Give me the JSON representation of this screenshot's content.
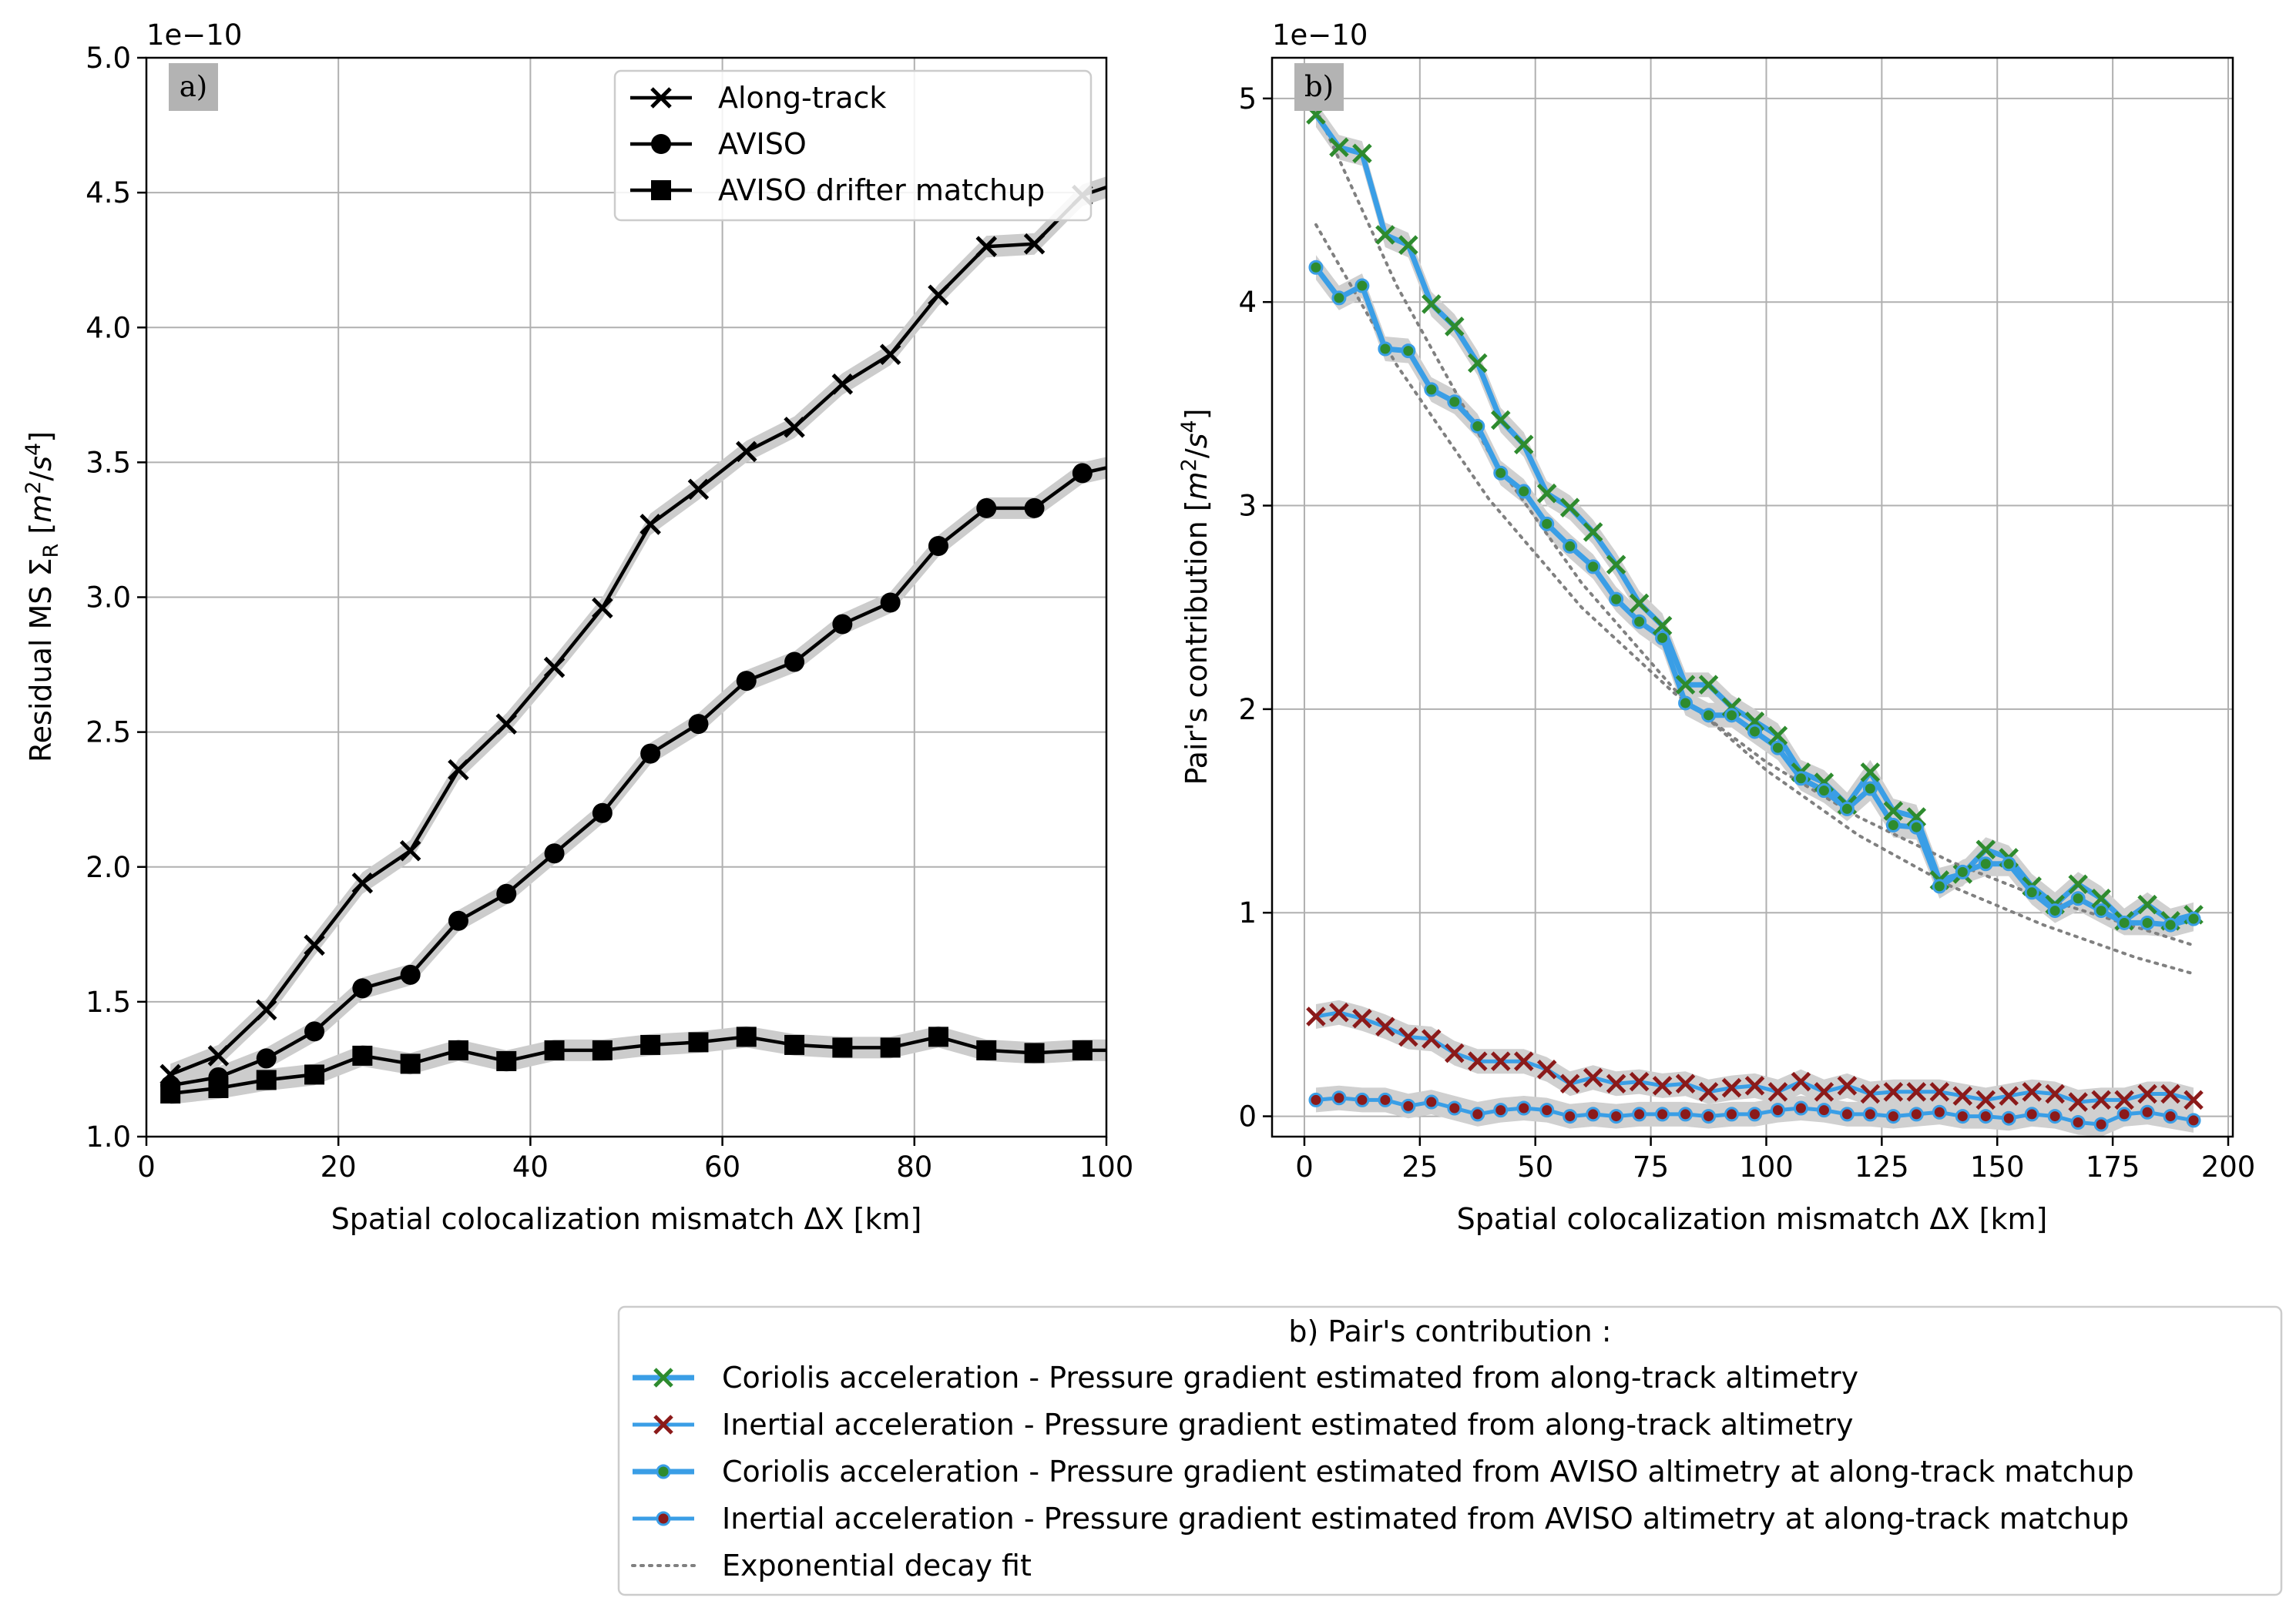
{
  "chart_data": [
    {
      "type": "line",
      "panel_label": "a)",
      "xlabel": "Spatial colocalization mismatch ΔX [km]",
      "ylabel": "Residual MS Σ_R [m²/s⁴]",
      "offset_text": "1e−10",
      "xlim": [
        0,
        100
      ],
      "ylim": [
        1.0,
        5.0
      ],
      "xticks": [
        "0",
        "20",
        "40",
        "60",
        "80",
        "100"
      ],
      "yticks": [
        "1.0",
        "1.5",
        "2.0",
        "2.5",
        "3.0",
        "3.5",
        "4.0",
        "4.5",
        "5.0"
      ],
      "grid": true,
      "legend_position": "top-right",
      "x": [
        2.5,
        7.5,
        12.5,
        17.5,
        22.5,
        27.5,
        32.5,
        37.5,
        42.5,
        47.5,
        52.5,
        57.5,
        62.5,
        67.5,
        72.5,
        77.5,
        82.5,
        87.5,
        92.5,
        97.5,
        102.5
      ],
      "series": [
        {
          "name": "Along-track",
          "marker": "x",
          "color": "#000000",
          "values": [
            1.23,
            1.3,
            1.47,
            1.71,
            1.94,
            2.06,
            2.36,
            2.53,
            2.74,
            2.96,
            3.27,
            3.4,
            3.54,
            3.63,
            3.79,
            3.9,
            4.12,
            4.3,
            4.31,
            4.49,
            4.55
          ]
        },
        {
          "name": "AVISO",
          "marker": "circle",
          "color": "#000000",
          "values": [
            1.19,
            1.22,
            1.29,
            1.39,
            1.55,
            1.6,
            1.8,
            1.9,
            2.05,
            2.2,
            2.42,
            2.53,
            2.69,
            2.76,
            2.9,
            2.98,
            3.19,
            3.33,
            3.33,
            3.46,
            3.5
          ]
        },
        {
          "name": "AVISO drifter matchup",
          "marker": "square",
          "color": "#000000",
          "values": [
            1.16,
            1.18,
            1.21,
            1.23,
            1.3,
            1.27,
            1.32,
            1.28,
            1.32,
            1.32,
            1.34,
            1.35,
            1.37,
            1.34,
            1.33,
            1.33,
            1.37,
            1.32,
            1.31,
            1.32,
            1.32
          ]
        }
      ]
    },
    {
      "type": "line",
      "panel_label": "b)",
      "xlabel": "Spatial colocalization mismatch ΔX [km]",
      "ylabel": "Pair's contribution [m²/s⁴]",
      "offset_text": "1e−10",
      "xlim": [
        -7,
        201
      ],
      "ylim": [
        -0.1,
        5.2
      ],
      "xticks": [
        "0",
        "25",
        "50",
        "75",
        "100",
        "125",
        "150",
        "175",
        "200"
      ],
      "yticks": [
        "0",
        "1",
        "2",
        "3",
        "4",
        "5"
      ],
      "grid": true,
      "legend_position": "bottom (outside)",
      "legend_title": "b) Pair's contribution :",
      "x": [
        2.5,
        7.5,
        12.5,
        17.5,
        22.5,
        27.5,
        32.5,
        37.5,
        42.5,
        47.5,
        52.5,
        57.5,
        62.5,
        67.5,
        72.5,
        77.5,
        82.5,
        87.5,
        92.5,
        97.5,
        102.5,
        107.5,
        112.5,
        117.5,
        122.5,
        127.5,
        132.5,
        137.5,
        142.5,
        147.5,
        152.5,
        157.5,
        162.5,
        167.5,
        172.5,
        177.5,
        182.5,
        187.5,
        192.5
      ],
      "series": [
        {
          "name": "Coriolis acceleration - Pressure gradient estimated from along-track altimetry",
          "marker": "x",
          "color": "#2e8b2e",
          "line_color": "#3a9ee6",
          "values": [
            4.92,
            4.76,
            4.73,
            4.33,
            4.28,
            3.99,
            3.88,
            3.7,
            3.42,
            3.3,
            3.06,
            2.99,
            2.87,
            2.71,
            2.52,
            2.41,
            2.12,
            2.12,
            2.01,
            1.94,
            1.87,
            1.69,
            1.64,
            1.53,
            1.69,
            1.5,
            1.47,
            1.16,
            1.19,
            1.31,
            1.27,
            1.13,
            1.04,
            1.14,
            1.07,
            0.96,
            1.04,
            0.96,
            0.99
          ]
        },
        {
          "name": "Inertial acceleration - Pressure gradient estimated from along-track altimetry",
          "marker": "x",
          "color": "#8b1a1a",
          "line_color": "#3a9ee6",
          "values": [
            0.49,
            0.51,
            0.48,
            0.44,
            0.39,
            0.38,
            0.31,
            0.27,
            0.27,
            0.27,
            0.23,
            0.16,
            0.19,
            0.16,
            0.17,
            0.15,
            0.16,
            0.12,
            0.14,
            0.15,
            0.12,
            0.17,
            0.12,
            0.15,
            0.11,
            0.12,
            0.12,
            0.12,
            0.1,
            0.08,
            0.1,
            0.12,
            0.11,
            0.07,
            0.08,
            0.08,
            0.11,
            0.11,
            0.08
          ]
        },
        {
          "name": "Coriolis acceleration - Pressure gradient estimated from AVISO altimetry at along-track matchup",
          "marker": "dot",
          "color": "#2e8b2e",
          "line_color": "#3a9ee6",
          "values": [
            4.17,
            4.02,
            4.08,
            3.77,
            3.76,
            3.57,
            3.51,
            3.39,
            3.16,
            3.07,
            2.91,
            2.8,
            2.7,
            2.54,
            2.43,
            2.35,
            2.03,
            1.97,
            1.97,
            1.89,
            1.81,
            1.66,
            1.6,
            1.51,
            1.61,
            1.43,
            1.42,
            1.13,
            1.2,
            1.24,
            1.24,
            1.1,
            1.01,
            1.07,
            1.01,
            0.95,
            0.95,
            0.94,
            0.97
          ]
        },
        {
          "name": "Inertial acceleration - Pressure gradient estimated from AVISO altimetry at along-track matchup",
          "marker": "dot",
          "color": "#8b1a1a",
          "line_color": "#3a9ee6",
          "values": [
            0.08,
            0.09,
            0.08,
            0.08,
            0.05,
            0.07,
            0.04,
            0.01,
            0.03,
            0.04,
            0.03,
            0.0,
            0.01,
            0.0,
            0.01,
            0.01,
            0.01,
            0.0,
            0.01,
            0.01,
            0.03,
            0.04,
            0.03,
            0.01,
            0.01,
            0.0,
            0.01,
            0.02,
            0.0,
            0.0,
            -0.01,
            0.01,
            0.0,
            -0.03,
            -0.04,
            0.01,
            0.02,
            0.0,
            -0.02
          ]
        },
        {
          "name": "Exponential decay fit",
          "style": "dotted",
          "color": "#808080",
          "fits": [
            {
              "x": [
                2.5,
                20,
                40,
                60,
                80,
                100,
                120,
                140,
                160,
                180,
                192.5
              ],
              "values": [
                4.95,
                4.08,
                3.26,
                2.62,
                2.1,
                1.7,
                1.38,
                1.13,
                0.94,
                0.78,
                0.7
              ]
            },
            {
              "x": [
                2.5,
                20,
                40,
                60,
                80,
                100,
                120,
                140,
                160,
                180,
                192.5
              ],
              "values": [
                4.38,
                3.69,
                3.03,
                2.5,
                2.08,
                1.74,
                1.47,
                1.25,
                1.07,
                0.93,
                0.84
              ]
            }
          ]
        }
      ]
    }
  ]
}
